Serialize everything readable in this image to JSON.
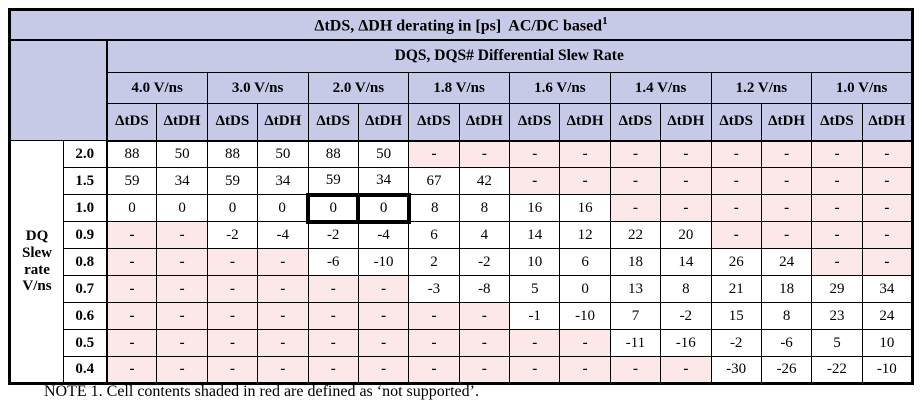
{
  "title": {
    "text": "ΔtDS, ΔDH derating in [ps]  AC/DC based",
    "superscript": "1"
  },
  "header": {
    "group_label": "DQS, DQS# Differential Slew Rate",
    "slew_columns": [
      "4.0 V/ns",
      "3.0 V/ns",
      "2.0 V/ns",
      "1.8 V/ns",
      "1.6 V/ns",
      "1.4 V/ns",
      "1.2 V/ns",
      "1.0 V/ns"
    ],
    "sub_columns": [
      "ΔtDS",
      "ΔtDH"
    ]
  },
  "row_axis_label": "DQ\nSlew\nrate\nV/ns",
  "rows": [
    {
      "rate": "2.0",
      "values": [
        "88",
        "50",
        "88",
        "50",
        "88",
        "50",
        "-",
        "-",
        "-",
        "-",
        "-",
        "-",
        "-",
        "-",
        "-",
        "-"
      ]
    },
    {
      "rate": "1.5",
      "values": [
        "59",
        "34",
        "59",
        "34",
        "59",
        "34",
        "67",
        "42",
        "-",
        "-",
        "-",
        "-",
        "-",
        "-",
        "-",
        "-"
      ]
    },
    {
      "rate": "1.0",
      "values": [
        "0",
        "0",
        "0",
        "0",
        "0",
        "0",
        "8",
        "8",
        "16",
        "16",
        "-",
        "-",
        "-",
        "-",
        "-",
        "-"
      ]
    },
    {
      "rate": "0.9",
      "values": [
        "-",
        "-",
        "-2",
        "-4",
        "-2",
        "-4",
        "6",
        "4",
        "14",
        "12",
        "22",
        "20",
        "-",
        "-",
        "-",
        "-"
      ]
    },
    {
      "rate": "0.8",
      "values": [
        "-",
        "-",
        "-",
        "-",
        "-6",
        "-10",
        "2",
        "-2",
        "10",
        "6",
        "18",
        "14",
        "26",
        "24",
        "-",
        "-"
      ]
    },
    {
      "rate": "0.7",
      "values": [
        "-",
        "-",
        "-",
        "-",
        "-",
        "-",
        "-3",
        "-8",
        "5",
        "0",
        "13",
        "8",
        "21",
        "18",
        "29",
        "34"
      ]
    },
    {
      "rate": "0.6",
      "values": [
        "-",
        "-",
        "-",
        "-",
        "-",
        "-",
        "-",
        "-",
        "-1",
        "-10",
        "7",
        "-2",
        "15",
        "8",
        "23",
        "24"
      ]
    },
    {
      "rate": "0.5",
      "values": [
        "-",
        "-",
        "-",
        "-",
        "-",
        "-",
        "-",
        "-",
        "-",
        "-",
        "-11",
        "-16",
        "-2",
        "-6",
        "5",
        "10"
      ]
    },
    {
      "rate": "0.4",
      "values": [
        "-",
        "-",
        "-",
        "-",
        "-",
        "-",
        "-",
        "-",
        "-",
        "-",
        "-",
        "-",
        "-30",
        "-26",
        "-22",
        "-10"
      ]
    }
  ],
  "highlight_cells": [
    {
      "row_index": 2,
      "col_index": 4
    },
    {
      "row_index": 2,
      "col_index": 5
    }
  ],
  "not_supported_marker": "-",
  "note": "NOTE 1. Cell contents shaded in red are defined as ‘not supported’.",
  "colors": {
    "header_bg": "#c6cae7",
    "unsupported_bg": "#fce8e8",
    "border": "#000000"
  }
}
